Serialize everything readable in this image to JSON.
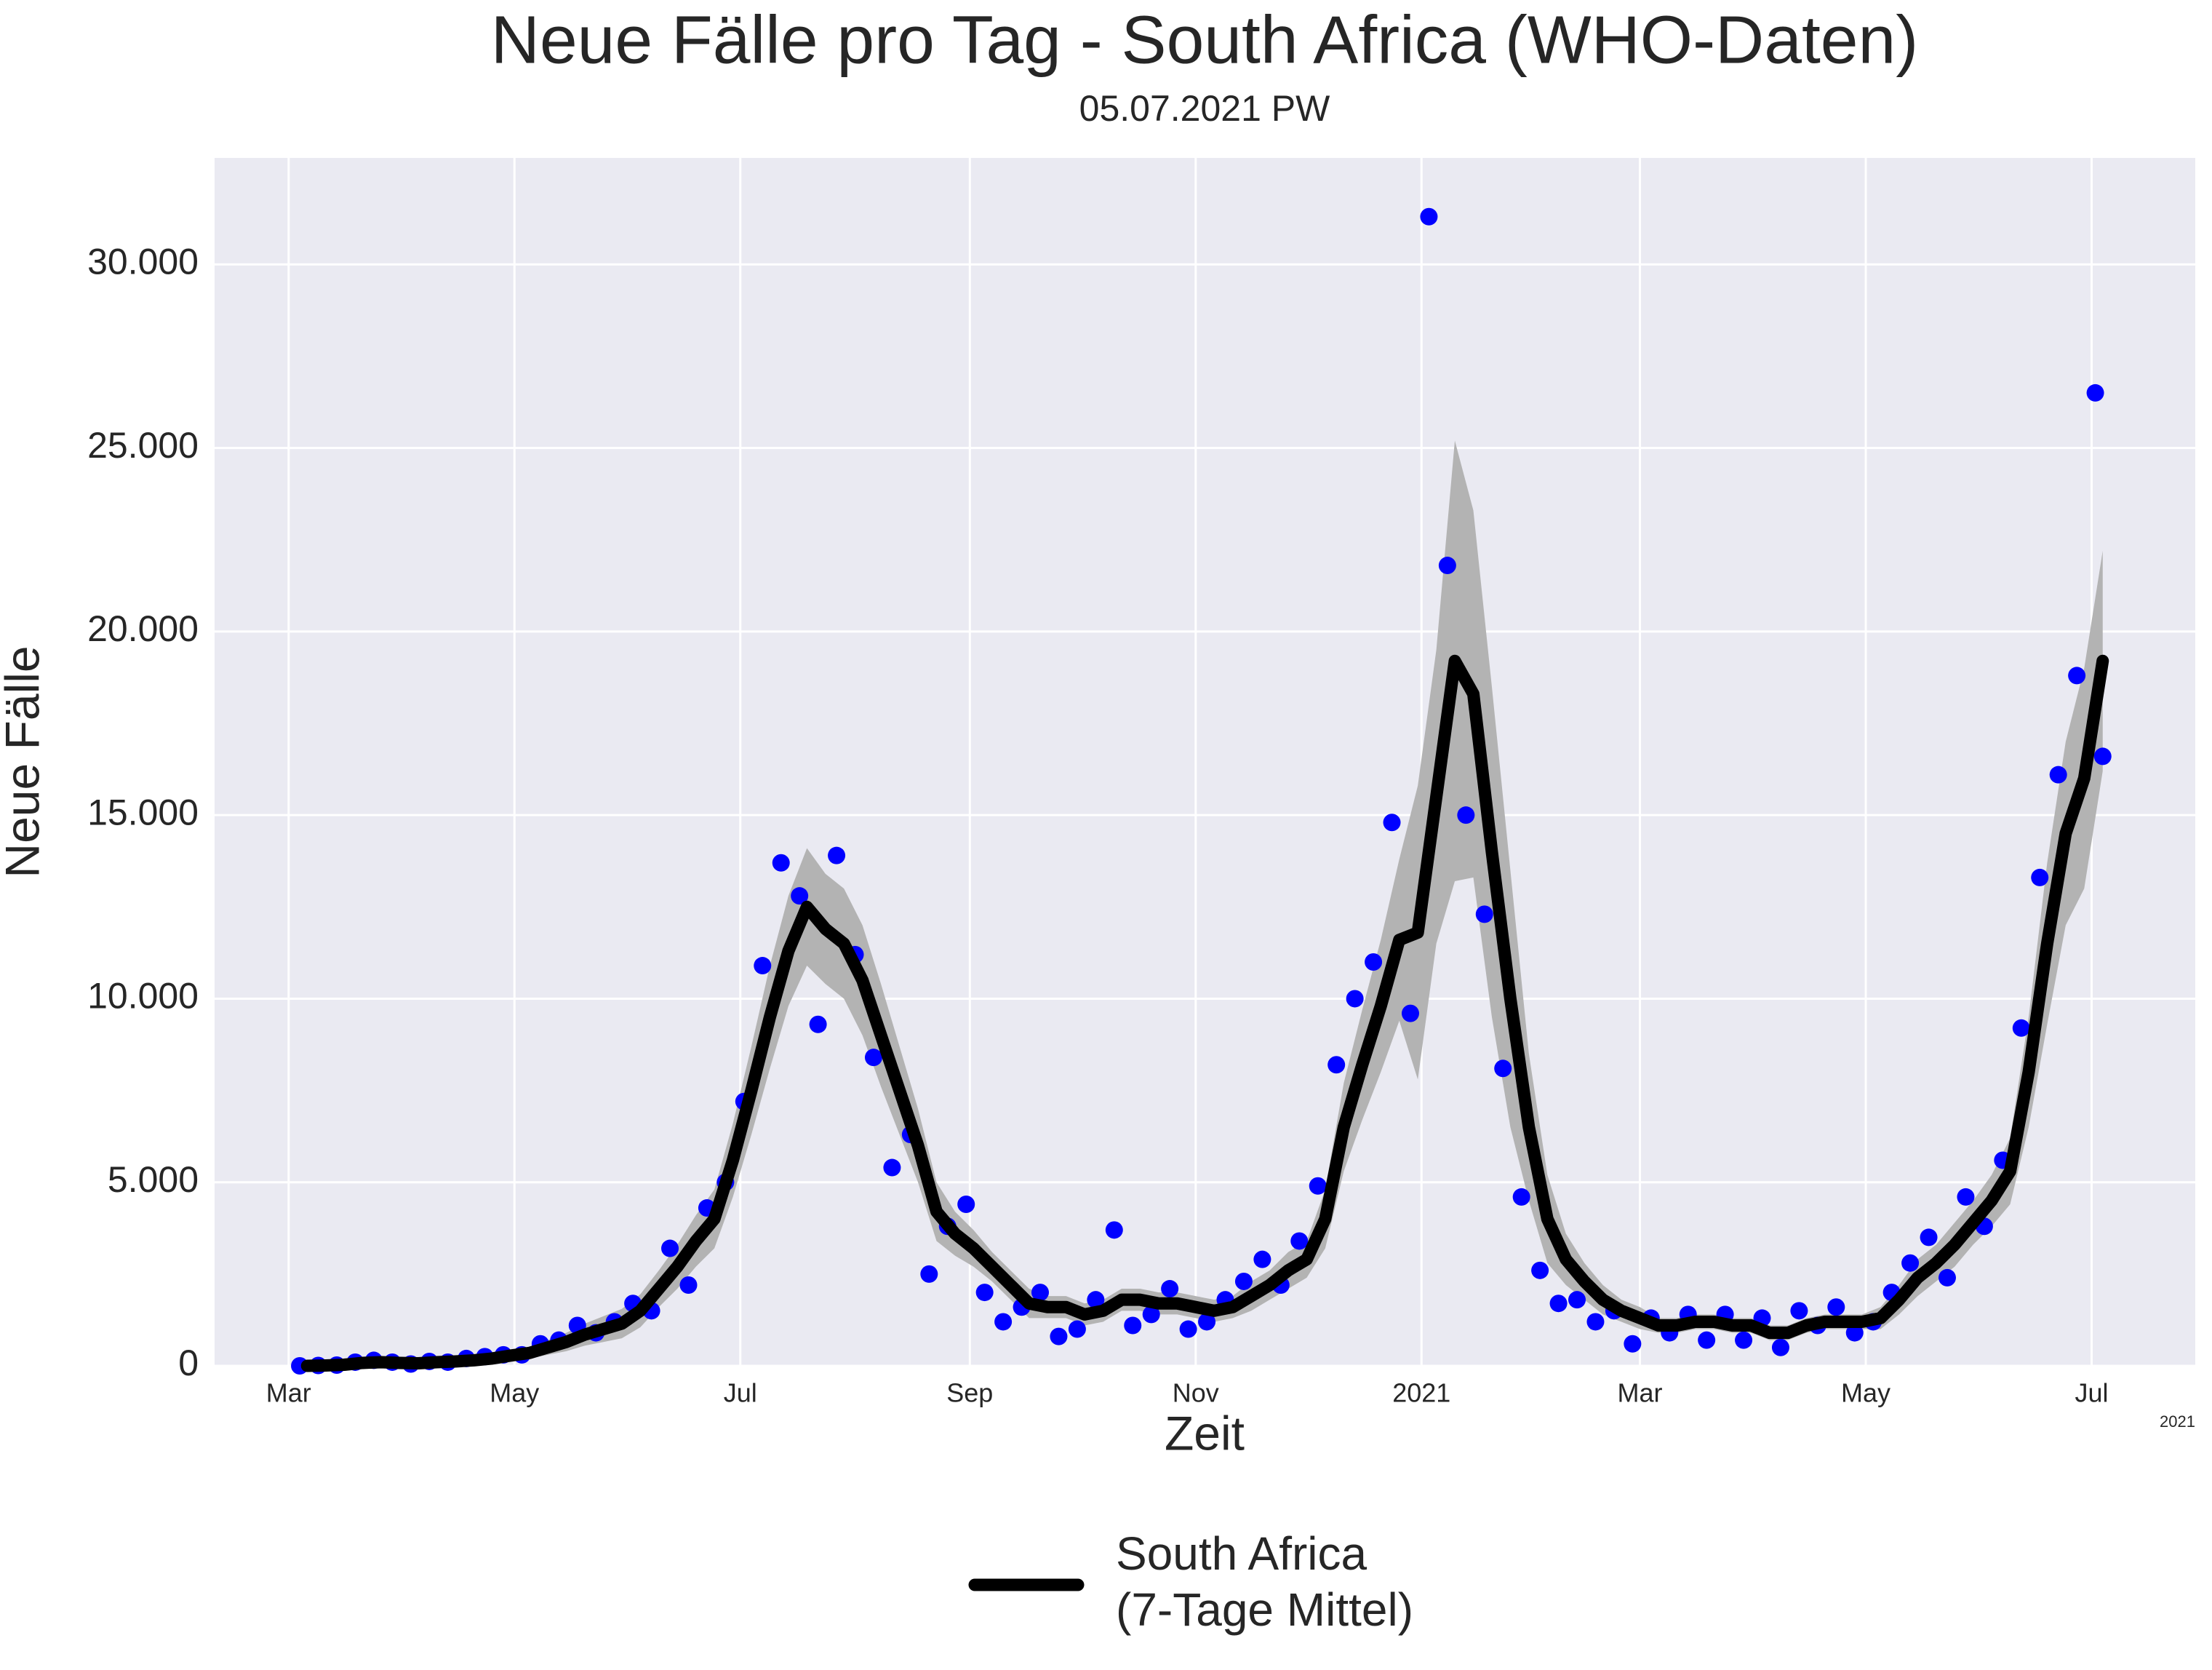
{
  "chart_data": {
    "type": "line",
    "title": "Neue Fälle pro Tag - South Africa (WHO-Daten)",
    "subtitle": "05.07.2021 PW",
    "x_label": "Zeit",
    "y_label": "Neue Fälle",
    "x_offset_label": "2021",
    "xlim": [
      -20,
      515
    ],
    "xticks": [
      {
        "value": 0,
        "label": "Mar"
      },
      {
        "value": 61,
        "label": "May"
      },
      {
        "value": 122,
        "label": "Jul"
      },
      {
        "value": 184,
        "label": "Sep"
      },
      {
        "value": 245,
        "label": "Nov"
      },
      {
        "value": 306,
        "label": "2021"
      },
      {
        "value": 365,
        "label": "Mar"
      },
      {
        "value": 426,
        "label": "May"
      },
      {
        "value": 487,
        "label": "Jul"
      }
    ],
    "ylim": [
      0,
      32900
    ],
    "yticks": [
      0,
      {
        "value": 5000,
        "label": "5.000"
      },
      {
        "value": 10000,
        "label": "10.000"
      },
      {
        "value": 15000,
        "label": "15.000"
      },
      {
        "value": 20000,
        "label": "20.000"
      },
      {
        "value": 25000,
        "label": "25.000"
      },
      {
        "value": 30000,
        "label": "30.000"
      }
    ],
    "grid": true,
    "legend": "bottom",
    "series": [
      {
        "type": "scatter",
        "color": "#0000ff",
        "x": [
          3,
          8,
          13,
          18,
          23,
          28,
          33,
          38,
          43,
          48,
          53,
          58,
          63,
          68,
          73,
          78,
          83,
          88,
          93,
          98,
          103,
          108,
          113,
          118,
          123,
          128,
          133,
          138,
          143,
          148,
          153,
          158,
          163,
          168,
          173,
          178,
          183,
          188,
          193,
          198,
          203,
          208,
          213,
          218,
          223,
          228,
          233,
          238,
          243,
          248,
          253,
          258,
          263,
          268,
          273,
          278,
          283,
          288,
          293,
          298,
          303,
          308,
          313,
          318,
          323,
          328,
          333,
          338,
          343,
          348,
          353,
          358,
          363,
          368,
          373,
          378,
          383,
          388,
          393,
          398,
          403,
          408,
          413,
          418,
          423,
          428,
          433,
          438,
          443,
          448,
          453,
          458,
          463,
          468,
          473,
          478,
          483,
          488,
          490
        ],
        "values": [
          0,
          10,
          20,
          100,
          150,
          100,
          50,
          120,
          100,
          200,
          250,
          300,
          300,
          600,
          700,
          1100,
          900,
          1200,
          1700,
          1500,
          3200,
          2200,
          4300,
          5000,
          7200,
          10900,
          13700,
          12800,
          9300,
          13900,
          11200,
          8400,
          5400,
          6300,
          2500,
          3800,
          4400,
          2000,
          1200,
          1600,
          2000,
          800,
          1000,
          1800,
          3700,
          1100,
          1400,
          2100,
          1000,
          1200,
          1800,
          2300,
          2900,
          2200,
          3400,
          4900,
          8200,
          10000,
          11000,
          14800,
          9600,
          31300,
          21800,
          15000,
          12300,
          8100,
          4600,
          2600,
          1700,
          1800,
          1200,
          1500,
          600,
          1300,
          900,
          1400,
          700,
          1400,
          700,
          1300,
          500,
          1500,
          1100,
          1600,
          900,
          1200,
          2000,
          2800,
          3500,
          2400,
          4600,
          3800,
          5600,
          9200,
          13300,
          16100,
          18800,
          26500,
          16600
        ]
      },
      {
        "type": "line",
        "name": "South Africa\n(7-Tage Mittel)",
        "color": "#000000",
        "band_color": "#b3b3b3",
        "x": [
          5,
          10,
          15,
          20,
          25,
          30,
          35,
          40,
          45,
          50,
          55,
          60,
          65,
          70,
          75,
          80,
          85,
          90,
          95,
          100,
          105,
          110,
          115,
          120,
          125,
          130,
          135,
          140,
          145,
          150,
          155,
          160,
          165,
          170,
          175,
          180,
          185,
          190,
          195,
          200,
          205,
          210,
          215,
          220,
          225,
          230,
          235,
          240,
          245,
          250,
          255,
          260,
          265,
          270,
          275,
          280,
          285,
          290,
          295,
          300,
          305,
          310,
          315,
          320,
          325,
          330,
          335,
          340,
          345,
          350,
          355,
          360,
          365,
          370,
          375,
          380,
          385,
          390,
          395,
          400,
          405,
          410,
          415,
          420,
          425,
          430,
          435,
          440,
          445,
          450,
          455,
          460,
          465,
          470,
          475,
          480,
          485,
          490
        ],
        "values": [
          0,
          10,
          30,
          80,
          100,
          80,
          70,
          100,
          120,
          150,
          200,
          280,
          350,
          500,
          650,
          850,
          1000,
          1150,
          1500,
          2100,
          2700,
          3400,
          4000,
          5600,
          7500,
          9500,
          11300,
          12500,
          11900,
          11500,
          10500,
          9000,
          7500,
          6000,
          4200,
          3600,
          3200,
          2700,
          2200,
          1700,
          1600,
          1600,
          1400,
          1500,
          1800,
          1800,
          1700,
          1700,
          1600,
          1500,
          1600,
          1900,
          2200,
          2600,
          2900,
          4000,
          6500,
          8200,
          9800,
          11600,
          11800,
          15500,
          19200,
          18300,
          14000,
          10000,
          6500,
          4000,
          2900,
          2300,
          1800,
          1500,
          1300,
          1100,
          1100,
          1200,
          1200,
          1100,
          1100,
          900,
          900,
          1100,
          1200,
          1200,
          1200,
          1300,
          1800,
          2400,
          2800,
          3300,
          3900,
          4500,
          5300,
          8000,
          11500,
          14500,
          16000,
          19200
        ],
        "errors": [
          0,
          10,
          20,
          50,
          60,
          50,
          40,
          50,
          60,
          80,
          100,
          120,
          150,
          200,
          250,
          300,
          350,
          400,
          450,
          500,
          600,
          700,
          800,
          1000,
          1200,
          1400,
          1500,
          1600,
          1500,
          1500,
          1500,
          1400,
          1200,
          1000,
          800,
          600,
          500,
          400,
          400,
          400,
          300,
          300,
          300,
          300,
          300,
          300,
          300,
          300,
          300,
          300,
          300,
          400,
          400,
          500,
          500,
          800,
          1200,
          1500,
          1800,
          2200,
          4000,
          4000,
          6000,
          5000,
          4500,
          3500,
          2000,
          1200,
          700,
          500,
          400,
          300,
          300,
          200,
          200,
          200,
          200,
          200,
          200,
          200,
          200,
          200,
          200,
          200,
          200,
          300,
          400,
          500,
          500,
          600,
          600,
          700,
          900,
          1500,
          2200,
          2500,
          3000,
          3000
        ]
      }
    ]
  }
}
